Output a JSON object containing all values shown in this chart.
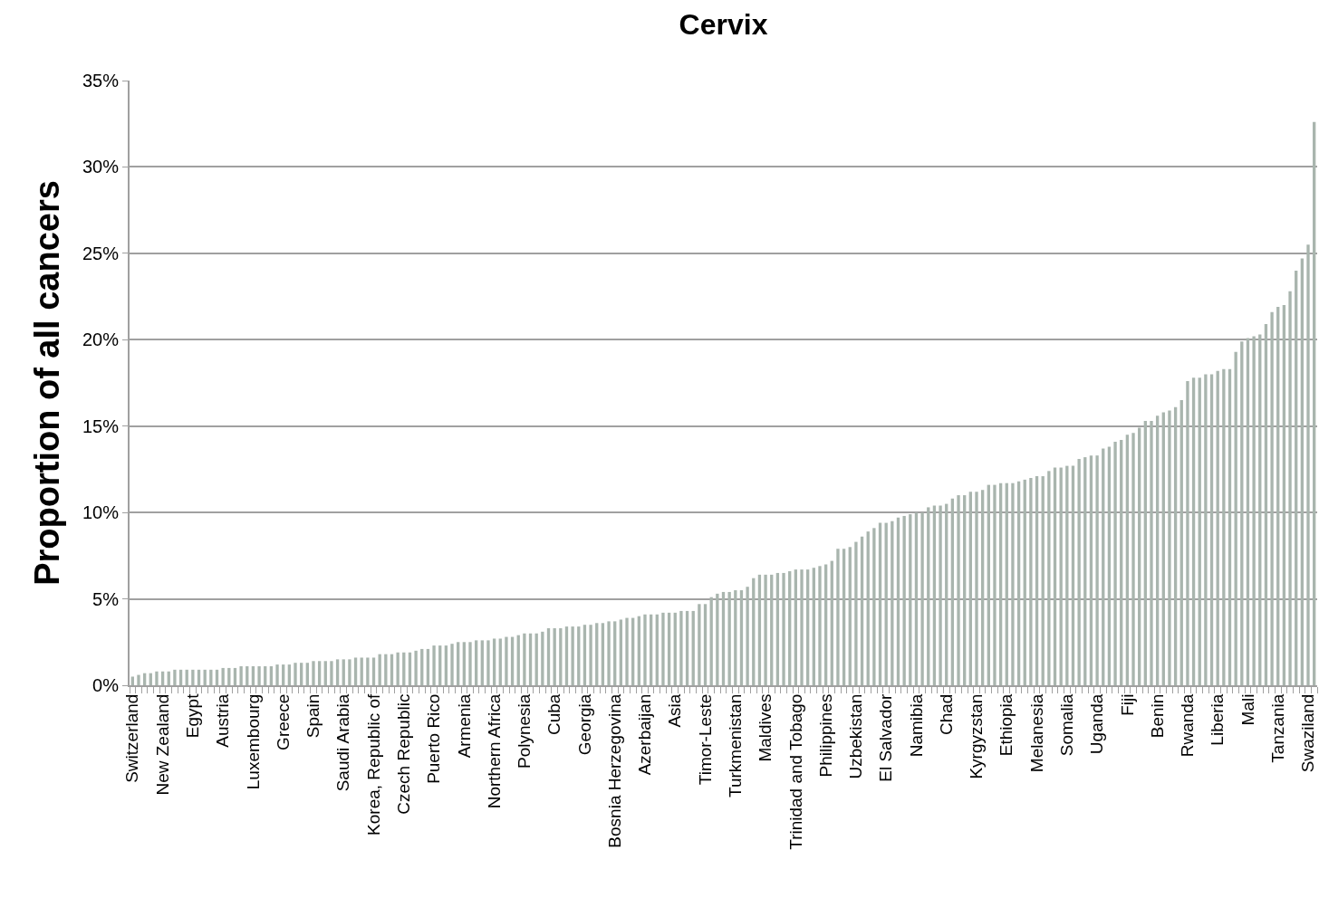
{
  "chart_data": {
    "type": "bar",
    "title": "Cervix",
    "ylabel": "Proportion of all cancers",
    "categories": [
      "Switzerland",
      null,
      null,
      null,
      null,
      "New Zealand",
      null,
      null,
      null,
      null,
      "Egypt",
      null,
      null,
      null,
      null,
      "Austria",
      null,
      null,
      null,
      null,
      "Luxembourg",
      null,
      null,
      null,
      null,
      "Greece",
      null,
      null,
      null,
      null,
      "Spain",
      null,
      null,
      null,
      null,
      "Saudi Arabia",
      null,
      null,
      null,
      null,
      "Korea, Republic of",
      null,
      null,
      null,
      null,
      "Czech Republic",
      null,
      null,
      null,
      null,
      "Puerto Rico",
      null,
      null,
      null,
      null,
      "Armenia",
      null,
      null,
      null,
      null,
      "Northern Africa",
      null,
      null,
      null,
      null,
      "Polynesia",
      null,
      null,
      null,
      null,
      "Cuba",
      null,
      null,
      null,
      null,
      "Georgia",
      null,
      null,
      null,
      null,
      "Bosnia Herzegovina",
      null,
      null,
      null,
      null,
      "Azerbaijan",
      null,
      null,
      null,
      null,
      "Asia",
      null,
      null,
      null,
      null,
      "Timor-Leste",
      null,
      null,
      null,
      null,
      "Turkmenistan",
      null,
      null,
      null,
      null,
      "Maldives",
      null,
      null,
      null,
      null,
      "Trinidad and Tobago",
      null,
      null,
      null,
      null,
      "Philippines",
      null,
      null,
      null,
      null,
      "Uzbekistan",
      null,
      null,
      null,
      null,
      "El Salvador",
      null,
      null,
      null,
      null,
      "Namibia",
      null,
      null,
      null,
      null,
      "Chad",
      null,
      null,
      null,
      null,
      "Kyrgyzstan",
      null,
      null,
      null,
      null,
      "Ethiopia",
      null,
      null,
      null,
      null,
      "Melanesia",
      null,
      null,
      null,
      null,
      "Somalia",
      null,
      null,
      null,
      null,
      "Uganda",
      null,
      null,
      null,
      null,
      "Fiji",
      null,
      null,
      null,
      null,
      "Benin",
      null,
      null,
      null,
      null,
      "Rwanda",
      null,
      null,
      null,
      null,
      "Liberia",
      null,
      null,
      null,
      null,
      "Mali",
      null,
      null,
      null,
      null,
      "Tanzania",
      null,
      null,
      null,
      null,
      "Swaziland",
      null
    ],
    "values": [
      0.5,
      0.6,
      0.7,
      0.7,
      0.8,
      0.8,
      0.8,
      0.9,
      0.9,
      0.9,
      0.9,
      0.9,
      0.9,
      0.9,
      0.9,
      1.0,
      1.0,
      1.0,
      1.1,
      1.1,
      1.1,
      1.1,
      1.1,
      1.1,
      1.2,
      1.2,
      1.2,
      1.3,
      1.3,
      1.3,
      1.4,
      1.4,
      1.4,
      1.4,
      1.5,
      1.5,
      1.5,
      1.6,
      1.6,
      1.6,
      1.6,
      1.8,
      1.8,
      1.8,
      1.9,
      1.9,
      1.9,
      2.0,
      2.1,
      2.1,
      2.3,
      2.3,
      2.3,
      2.4,
      2.5,
      2.5,
      2.5,
      2.6,
      2.6,
      2.6,
      2.7,
      2.7,
      2.8,
      2.8,
      2.9,
      3.0,
      3.0,
      3.0,
      3.1,
      3.3,
      3.3,
      3.3,
      3.4,
      3.4,
      3.4,
      3.5,
      3.5,
      3.6,
      3.6,
      3.7,
      3.7,
      3.8,
      3.9,
      3.9,
      4.0,
      4.1,
      4.1,
      4.1,
      4.2,
      4.2,
      4.2,
      4.3,
      4.3,
      4.3,
      4.7,
      4.7,
      5.1,
      5.3,
      5.4,
      5.4,
      5.5,
      5.5,
      5.7,
      6.2,
      6.4,
      6.4,
      6.4,
      6.5,
      6.5,
      6.6,
      6.7,
      6.7,
      6.7,
      6.8,
      6.9,
      7.0,
      7.2,
      7.9,
      7.9,
      8.0,
      8.3,
      8.6,
      8.9,
      9.1,
      9.4,
      9.4,
      9.5,
      9.7,
      9.8,
      9.9,
      10.0,
      10.0,
      10.3,
      10.4,
      10.4,
      10.5,
      10.8,
      11.0,
      11.0,
      11.2,
      11.2,
      11.3,
      11.6,
      11.6,
      11.7,
      11.7,
      11.7,
      11.8,
      11.9,
      12.0,
      12.1,
      12.1,
      12.4,
      12.6,
      12.6,
      12.7,
      12.7,
      13.1,
      13.2,
      13.3,
      13.3,
      13.7,
      13.8,
      14.1,
      14.2,
      14.5,
      14.6,
      14.9,
      15.3,
      15.3,
      15.6,
      15.8,
      15.9,
      16.1,
      16.5,
      17.6,
      17.8,
      17.8,
      18.0,
      18.0,
      18.2,
      18.3,
      18.3,
      19.3,
      19.9,
      20.1,
      20.2,
      20.3,
      20.9,
      21.6,
      21.9,
      22.0,
      22.8,
      24.0,
      24.7,
      25.5,
      32.6
    ],
    "color": "#a9b5ae",
    "ylim": [
      0,
      35
    ],
    "yticks": [
      {
        "value": 0,
        "label": "0%"
      },
      {
        "value": 5,
        "label": "5%"
      },
      {
        "value": 10,
        "label": "10%"
      },
      {
        "value": 15,
        "label": "15%"
      },
      {
        "value": 20,
        "label": "20%"
      },
      {
        "value": 25,
        "label": "25%"
      },
      {
        "value": 30,
        "label": "30%"
      },
      {
        "value": 35,
        "label": "35%"
      }
    ],
    "grid": "y"
  }
}
